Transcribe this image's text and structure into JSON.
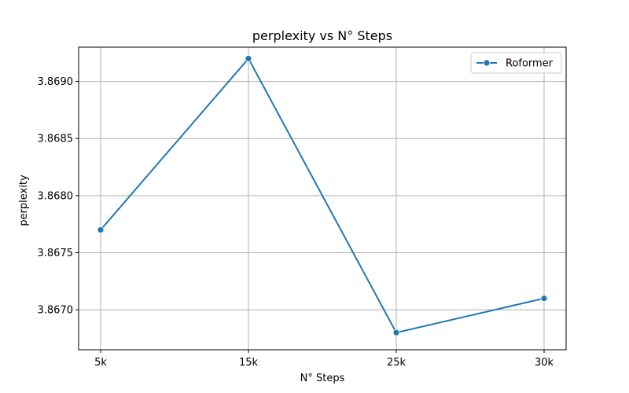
{
  "chart_data": {
    "type": "line",
    "title": "perplexity vs N° Steps",
    "xlabel": "N° Steps",
    "ylabel": "perplexity",
    "categories": [
      "5k",
      "15k",
      "25k",
      "30k"
    ],
    "series": [
      {
        "name": "Roformer",
        "values": [
          3.8677,
          3.8692,
          3.8668,
          3.8671
        ],
        "color": "#1f77b4"
      }
    ],
    "ylim": [
      3.86665,
      3.8693
    ],
    "yticks": [
      3.867,
      3.8675,
      3.868,
      3.8685,
      3.869
    ],
    "ytick_labels": [
      "3.8670",
      "3.8675",
      "3.8680",
      "3.8685",
      "3.8690"
    ],
    "grid": true,
    "legend_position": "top-right"
  }
}
